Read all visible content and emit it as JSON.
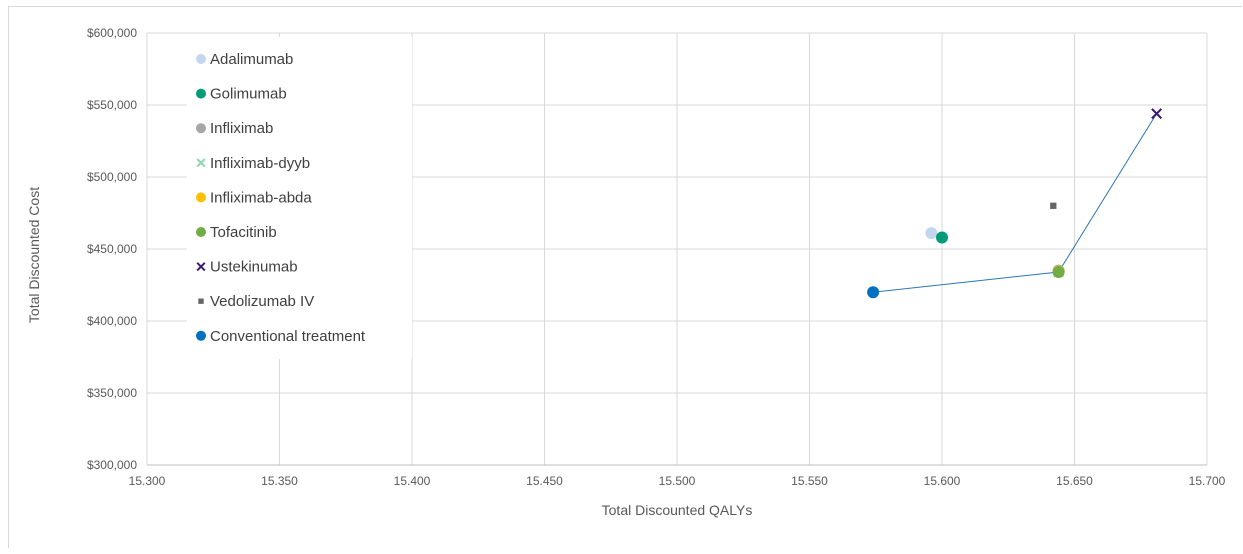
{
  "chart_data": {
    "type": "scatter",
    "title": "",
    "xlabel": "Total Discounted QALYs",
    "ylabel": "Total Discounted Cost",
    "xlim": [
      15.3,
      15.7
    ],
    "ylim": [
      300000,
      600000
    ],
    "x_ticks": [
      "15.300",
      "15.350",
      "15.400",
      "15.450",
      "15.500",
      "15.550",
      "15.600",
      "15.650",
      "15.700"
    ],
    "y_ticks": [
      "$300,000",
      "$350,000",
      "$400,000",
      "$450,000",
      "$500,000",
      "$550,000",
      "$600,000"
    ],
    "grid": true,
    "legend_position": "top-left",
    "series": [
      {
        "name": "Adalimumab",
        "marker": "circle",
        "color": "#c3d6ee",
        "x": 15.596,
        "y": 461000
      },
      {
        "name": "Golimumab",
        "marker": "circle",
        "color": "#009b77",
        "x": 15.6,
        "y": 458000
      },
      {
        "name": "Infliximab",
        "marker": "circle",
        "color": "#a6a6a6",
        "x": 15.644,
        "y": 435000
      },
      {
        "name": "Infliximab-dyyb",
        "marker": "x",
        "color": "#8fd6b0",
        "x": 15.644,
        "y": 434000
      },
      {
        "name": "Infliximab-abda",
        "marker": "circle",
        "color": "#ffc000",
        "x": 15.644,
        "y": 434500
      },
      {
        "name": "Tofacitinib",
        "marker": "circle",
        "color": "#70ad47",
        "x": 15.644,
        "y": 434000
      },
      {
        "name": "Ustekinumab",
        "marker": "x",
        "color": "#3c1a6e",
        "x": 15.681,
        "y": 544000
      },
      {
        "name": "Vedolizumab IV",
        "marker": "square",
        "color": "#666666",
        "x": 15.642,
        "y": 480000
      },
      {
        "name": "Conventional treatment",
        "marker": "circle",
        "color": "#0070c0",
        "x": 15.574,
        "y": 420000
      }
    ],
    "frontier": {
      "color": "#2e75b6",
      "points": [
        [
          15.574,
          420000
        ],
        [
          15.644,
          434000
        ],
        [
          15.681,
          544000
        ]
      ]
    }
  }
}
